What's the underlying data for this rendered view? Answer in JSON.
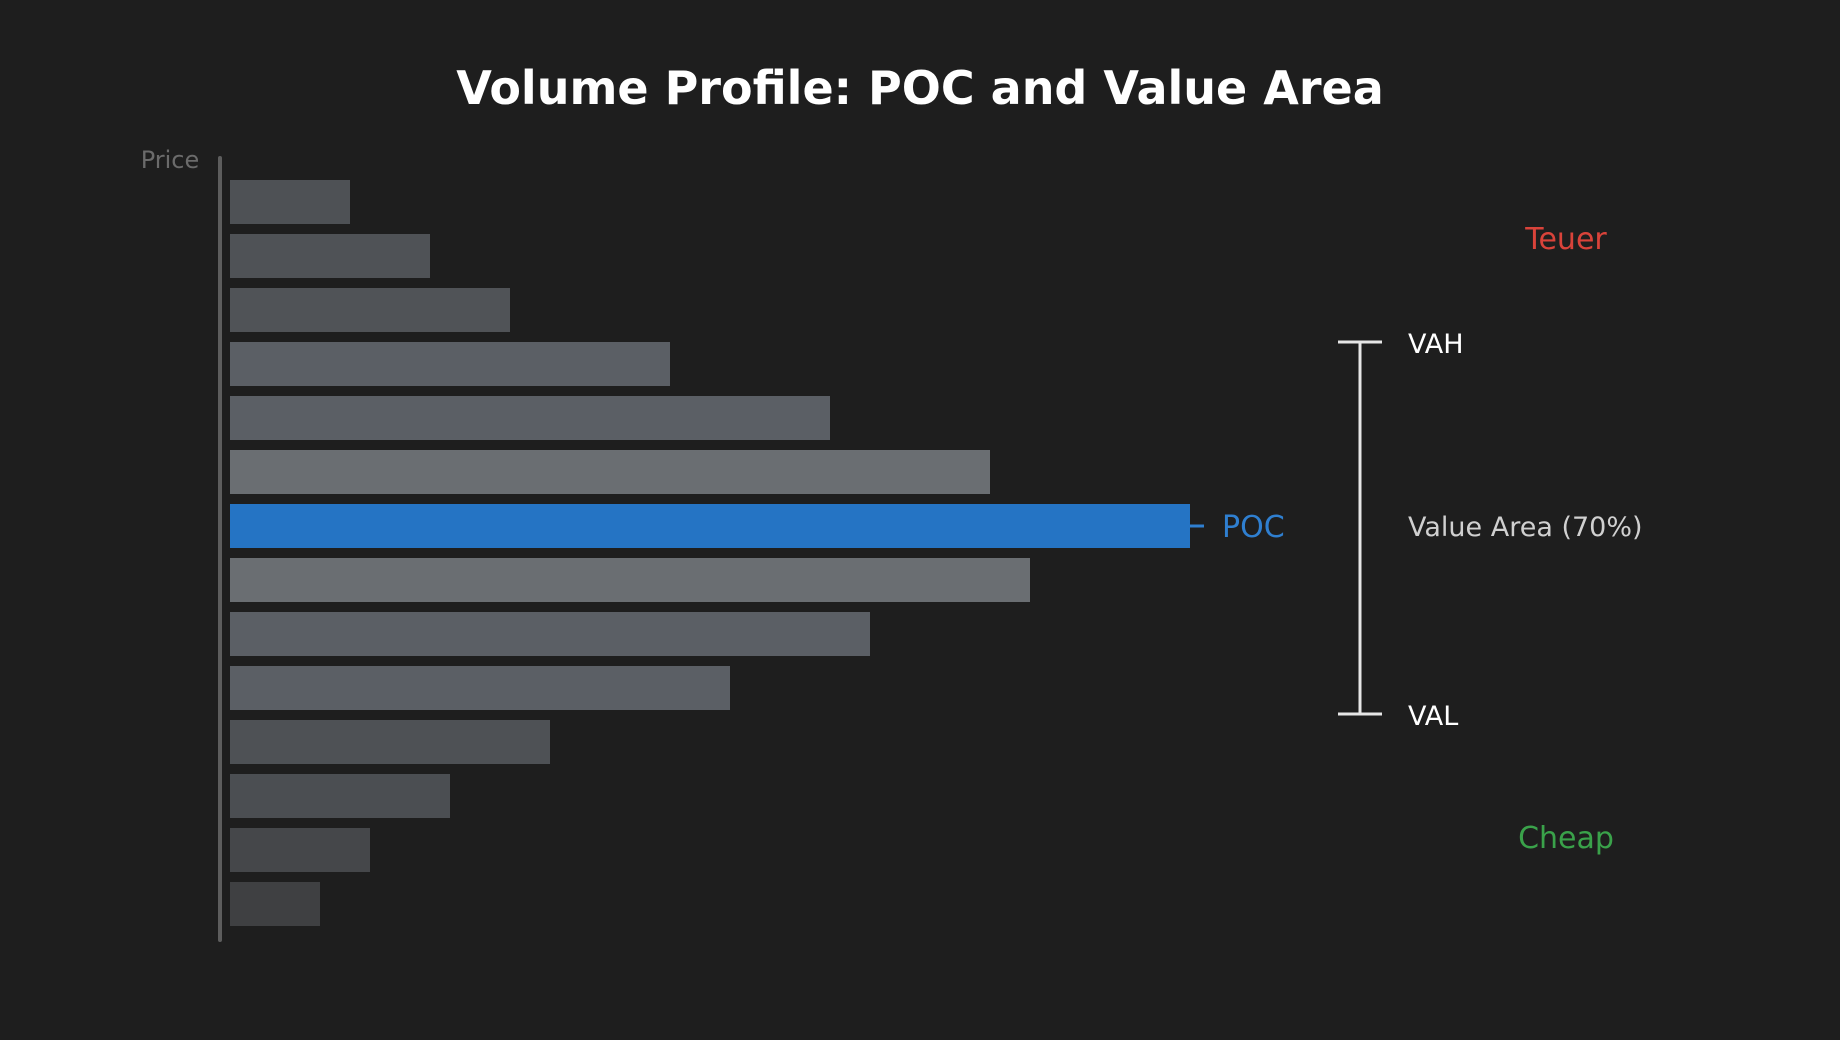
{
  "chart_data": {
    "type": "bar",
    "orientation": "horizontal",
    "title": "Volume Profile: POC and Value Area",
    "ylabel": "Price",
    "xlabel": "",
    "x_range": [
      0,
      100
    ],
    "grid": false,
    "levels_top_to_bottom": 14,
    "values": [
      12,
      20,
      28,
      44,
      60,
      76,
      96,
      80,
      64,
      50,
      32,
      22,
      14,
      9
    ],
    "poc_index": 6,
    "value_area_indices": [
      3,
      4,
      5,
      6,
      7,
      8,
      9
    ],
    "annotations": {
      "poc": "POC",
      "vah": "VAH",
      "val": "VAL",
      "value_area": "Value Area (70%)",
      "expensive": "Teuer",
      "cheap": "Cheap"
    },
    "colors": {
      "background": "#1e1e1e",
      "poc_bar": "#2574c4",
      "poc_label": "#2f7fd0",
      "axis": "#5d5d5d",
      "bracket": "#e6e6e6",
      "expensive": "#d9433a",
      "cheap": "#3aa24a",
      "bar_shades": [
        "#4e5155",
        "#4f5256",
        "#505357",
        "#5b5f65",
        "#5b5f65",
        "#6a6e72",
        "#2574c4",
        "#6a6e72",
        "#5b5f65",
        "#5b5f65",
        "#4e5155",
        "#4b4e52",
        "#45474a",
        "#3f4042"
      ]
    }
  }
}
